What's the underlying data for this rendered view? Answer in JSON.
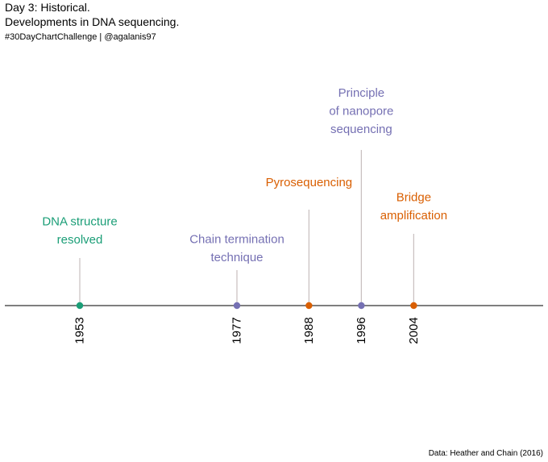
{
  "header": {
    "title_line1": "Day 3: Historical.",
    "title_line2": "Developments in DNA sequencing.",
    "subtitle": "#30DayChartChallenge | @agalanis97"
  },
  "caption": "Data: Heather and Chain (2016)",
  "colors": {
    "green": "#1b9e77",
    "purple": "#7570b3",
    "orange": "#d95f02",
    "axis": "#555555",
    "stem": "#c8bfbf"
  },
  "chart_data": {
    "type": "timeline",
    "events": [
      {
        "year": 1953,
        "label_lines": [
          "DNA structure",
          "resolved"
        ],
        "color": "#1b9e77",
        "level": 1
      },
      {
        "year": 1977,
        "label_lines": [
          "Chain termination",
          "technique"
        ],
        "color": "#7570b3",
        "level": 0
      },
      {
        "year": 1988,
        "label_lines": [
          "Pyrosequencing"
        ],
        "color": "#d95f02",
        "level": 3
      },
      {
        "year": 1996,
        "label_lines": [
          "Principle",
          "of nanopore",
          "sequencing"
        ],
        "color": "#7570b3",
        "level": 4
      },
      {
        "year": 2004,
        "label_lines": [
          "Bridge",
          "amplification"
        ],
        "color": "#d95f02",
        "level": 2
      }
    ],
    "xlabel": "",
    "ylabel": ""
  }
}
